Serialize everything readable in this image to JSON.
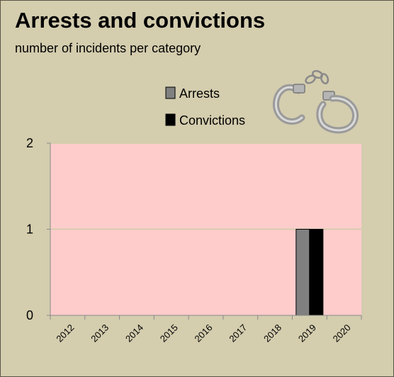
{
  "header": {
    "title": "Arrests and convictions",
    "subtitle": "number of incidents per category"
  },
  "icon": {
    "name": "handcuffs-icon"
  },
  "chart_data": {
    "type": "bar",
    "categories": [
      "2012",
      "2013",
      "2014",
      "2015",
      "2016",
      "2017",
      "2018",
      "2019",
      "2020"
    ],
    "series": [
      {
        "name": "Arrests",
        "values": [
          0,
          0,
          0,
          0,
          0,
          0,
          0,
          1,
          0
        ],
        "color": "#808080"
      },
      {
        "name": "Convictions",
        "values": [
          0,
          0,
          0,
          0,
          0,
          0,
          0,
          1,
          0
        ],
        "color": "#000000"
      }
    ],
    "title": "Arrests and convictions",
    "subtitle": "number of incidents per category",
    "xlabel": "",
    "ylabel": "",
    "ylim": [
      0,
      2
    ],
    "yticks": [
      "0",
      "1",
      "2"
    ],
    "grid": true,
    "legend_position": "top-right",
    "plot_background": "#ffcccc",
    "page_background": "#d4cdae",
    "gridline_color": "#d4cdae"
  }
}
